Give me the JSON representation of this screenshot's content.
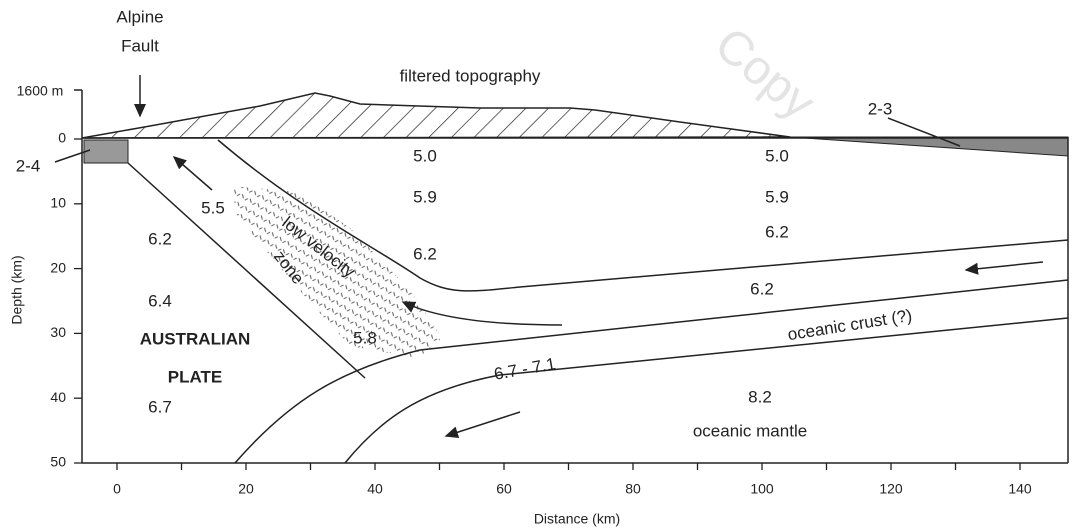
{
  "header": {
    "fault": [
      "Alpine",
      "Fault"
    ],
    "topography": "filtered topography",
    "watermark": "Copy"
  },
  "axes": {
    "x_label": "Distance (km)",
    "y_label": "Depth (km)",
    "top_label": "1600 m",
    "x_ticks": [
      "0",
      "20",
      "40",
      "60",
      "80",
      "100",
      "120",
      "140"
    ],
    "y_ticks": [
      "0",
      "10",
      "20",
      "30",
      "40",
      "50"
    ]
  },
  "layers": {
    "left_sediment": "2-4",
    "right_sediment": "2-3"
  },
  "velocities": [
    "5.0",
    "5.0",
    "5.9",
    "5.9",
    "5.5",
    "6.2",
    "6.2",
    "6.2",
    "6.4",
    "6.2",
    "5.8",
    "6.7",
    "8.2",
    "6.7 - 7.1"
  ],
  "regions": {
    "low_velocity": [
      "low velocity",
      "zone"
    ],
    "plate": [
      "AUSTRALIAN",
      "PLATE"
    ],
    "crust": "oceanic crust (?)",
    "mantle": "oceanic mantle"
  }
}
